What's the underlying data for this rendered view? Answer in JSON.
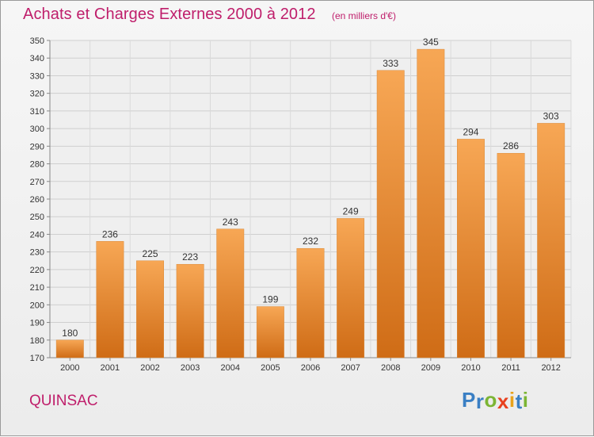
{
  "chart_data": {
    "type": "bar",
    "title": "Achats et Charges Externes 2000 à 2012",
    "subtitle": "(en milliers d'€)",
    "categories": [
      "2000",
      "2001",
      "2002",
      "2003",
      "2004",
      "2005",
      "2006",
      "2007",
      "2008",
      "2009",
      "2010",
      "2011",
      "2012"
    ],
    "values": [
      180,
      236,
      225,
      223,
      243,
      199,
      232,
      249,
      333,
      345,
      294,
      286,
      303
    ],
    "ylim": [
      170,
      350
    ],
    "ytick_step": 10,
    "grid": true,
    "xlabel": "",
    "ylabel": "",
    "bar_color_top": "#f7a755",
    "bar_color_bottom": "#cf6c16"
  },
  "footer": {
    "city": "QUINSAC",
    "logo_letters": [
      {
        "ch": "P",
        "color": "#3a7fc4"
      },
      {
        "ch": "r",
        "color": "#3a7fc4"
      },
      {
        "ch": "o",
        "color": "#7cb534"
      },
      {
        "ch": "x",
        "color": "#e8411f"
      },
      {
        "ch": "i",
        "color": "#e8a21c"
      },
      {
        "ch": "t",
        "color": "#3a7fc4"
      },
      {
        "ch": "i",
        "color": "#7cb534"
      }
    ]
  }
}
